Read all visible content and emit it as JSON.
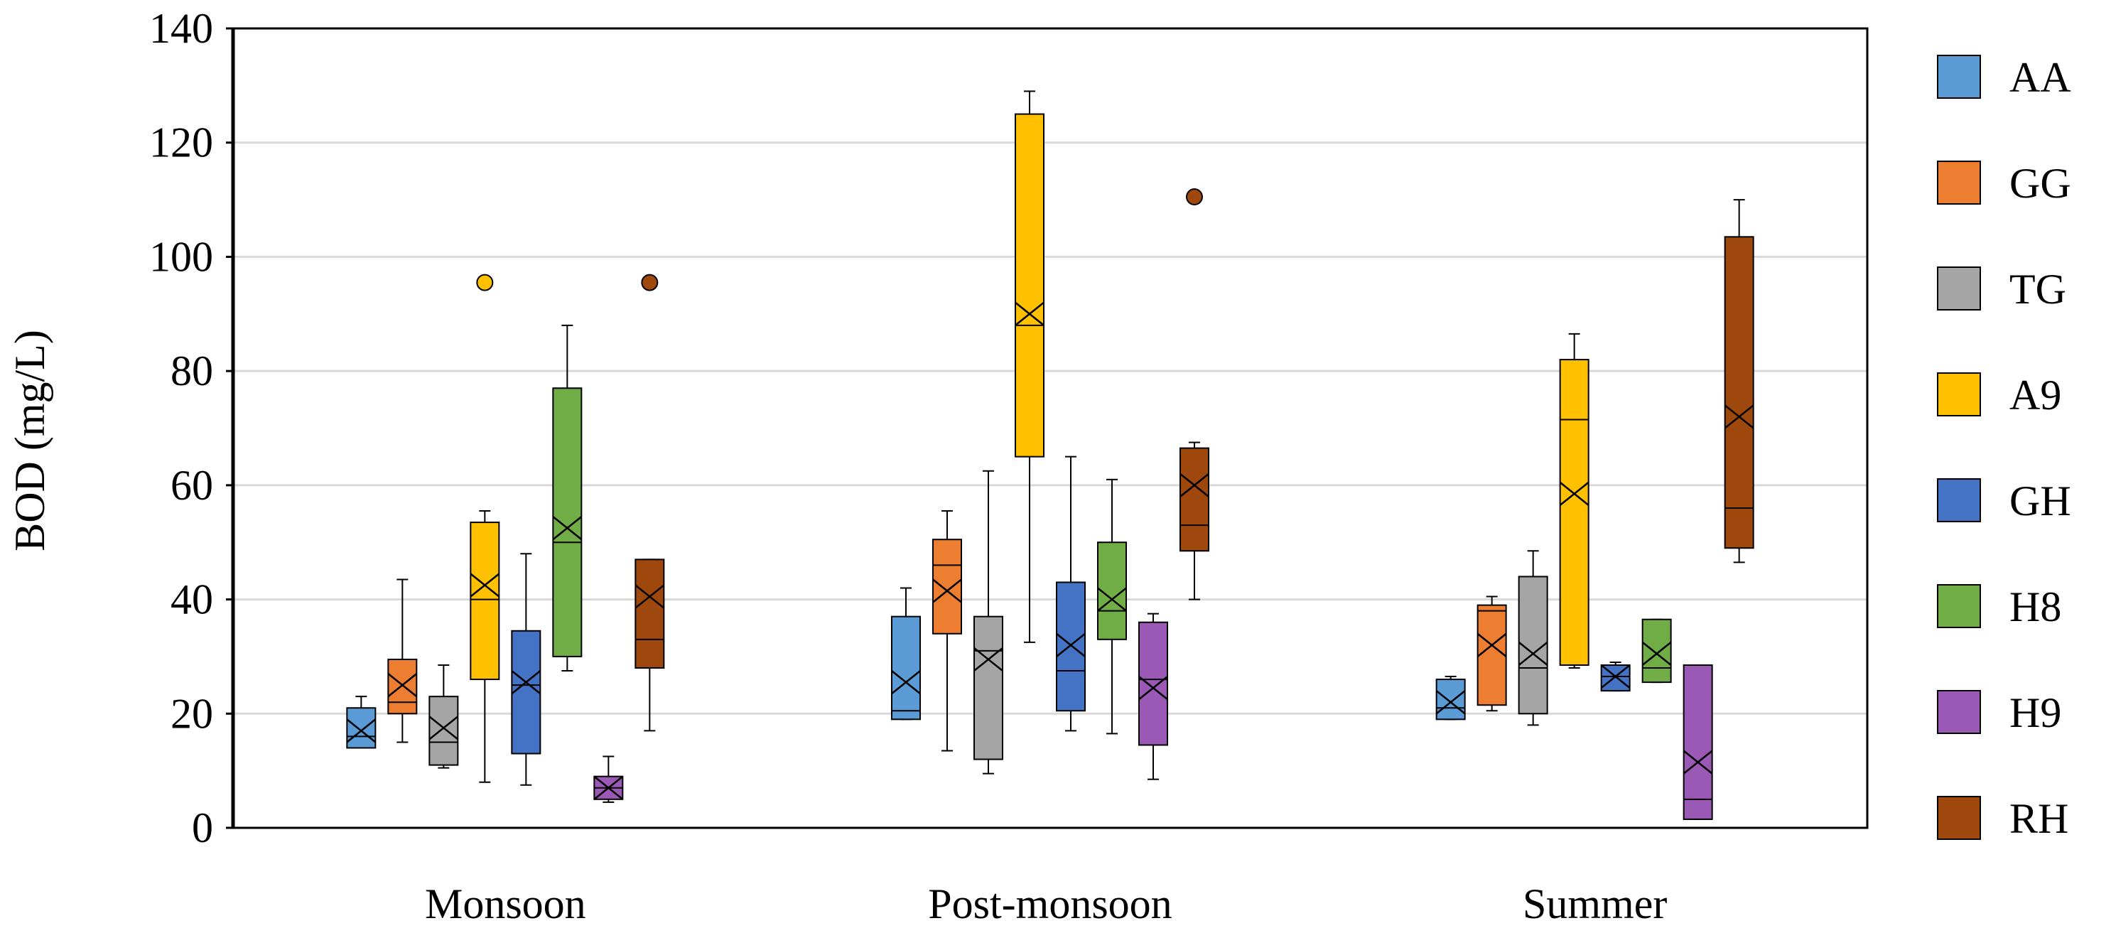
{
  "chart_data": {
    "type": "boxplot",
    "title": "",
    "xlabel": "",
    "ylabel": "BOD (mg/L)",
    "ylim": [
      0,
      140
    ],
    "yticks": [
      0,
      20,
      40,
      60,
      80,
      100,
      120,
      140
    ],
    "categories": [
      "Monsoon",
      "Post-monsoon",
      "Summer"
    ],
    "grid": true,
    "legend_position": "right",
    "series": [
      {
        "name": "AA",
        "color": "#5B9BD5",
        "boxes": [
          {
            "min": 14,
            "q1": 14,
            "median": 16,
            "q3": 21,
            "max": 23,
            "mean": 17,
            "outliers": []
          },
          {
            "min": 19,
            "q1": 19,
            "median": 20.5,
            "q3": 37,
            "max": 42,
            "mean": 25.5,
            "outliers": []
          },
          {
            "min": 19,
            "q1": 19,
            "median": 21,
            "q3": 26,
            "max": 26.5,
            "mean": 22,
            "outliers": []
          }
        ]
      },
      {
        "name": "GG",
        "color": "#ED7D31",
        "boxes": [
          {
            "min": 15,
            "q1": 20,
            "median": 22,
            "q3": 29.5,
            "max": 43.5,
            "mean": 25,
            "outliers": []
          },
          {
            "min": 13.5,
            "q1": 34,
            "median": 46,
            "q3": 50.5,
            "max": 55.5,
            "mean": 41.5,
            "outliers": []
          },
          {
            "min": 20.5,
            "q1": 21.5,
            "median": 38,
            "q3": 39,
            "max": 40.5,
            "mean": 32,
            "outliers": []
          }
        ]
      },
      {
        "name": "TG",
        "color": "#A5A5A5",
        "boxes": [
          {
            "min": 10.5,
            "q1": 11,
            "median": 15,
            "q3": 23,
            "max": 28.5,
            "mean": 17.5,
            "outliers": []
          },
          {
            "min": 9.5,
            "q1": 12,
            "median": 31,
            "q3": 37,
            "max": 62.5,
            "mean": 29.5,
            "outliers": []
          },
          {
            "min": 18,
            "q1": 20,
            "median": 28,
            "q3": 44,
            "max": 48.5,
            "mean": 30.5,
            "outliers": []
          }
        ]
      },
      {
        "name": "A9",
        "color": "#FFC000",
        "boxes": [
          {
            "min": 8,
            "q1": 26,
            "median": 40,
            "q3": 53.5,
            "max": 55.5,
            "mean": 42.5,
            "outliers": [
              95.5
            ]
          },
          {
            "min": 32.5,
            "q1": 65,
            "median": 88,
            "q3": 125,
            "max": 129,
            "mean": 90,
            "outliers": []
          },
          {
            "min": 28,
            "q1": 28.5,
            "median": 71.5,
            "q3": 82,
            "max": 86.5,
            "mean": 58.5,
            "outliers": []
          }
        ]
      },
      {
        "name": "GH",
        "color": "#4472C4",
        "boxes": [
          {
            "min": 7.5,
            "q1": 13,
            "median": 25,
            "q3": 34.5,
            "max": 48,
            "mean": 25.5,
            "outliers": []
          },
          {
            "min": 17,
            "q1": 20.5,
            "median": 27.5,
            "q3": 43,
            "max": 65,
            "mean": 32,
            "outliers": []
          },
          {
            "min": 24,
            "q1": 24,
            "median": 26.5,
            "q3": 28.5,
            "max": 29,
            "mean": 26.5,
            "outliers": []
          }
        ]
      },
      {
        "name": "H8",
        "color": "#70AD47",
        "boxes": [
          {
            "min": 27.5,
            "q1": 30,
            "median": 50,
            "q3": 77,
            "max": 88,
            "mean": 52.5,
            "outliers": []
          },
          {
            "min": 16.5,
            "q1": 33,
            "median": 38,
            "q3": 50,
            "max": 61,
            "mean": 40,
            "outliers": []
          },
          {
            "min": 25.5,
            "q1": 25.5,
            "median": 28,
            "q3": 36.5,
            "max": 36.5,
            "mean": 30.5,
            "outliers": []
          }
        ]
      },
      {
        "name": "H9",
        "color": "#9B59B6",
        "boxes": [
          {
            "min": 4.5,
            "q1": 5,
            "median": 7,
            "q3": 9,
            "max": 12.5,
            "mean": 7,
            "outliers": []
          },
          {
            "min": 8.5,
            "q1": 14.5,
            "median": 26,
            "q3": 36,
            "max": 37.5,
            "mean": 24.5,
            "outliers": []
          },
          {
            "min": 1.5,
            "q1": 1.5,
            "median": 5,
            "q3": 28.5,
            "max": 28.5,
            "mean": 11.5,
            "outliers": []
          }
        ]
      },
      {
        "name": "RH",
        "color": "#9E480E",
        "boxes": [
          {
            "min": 17,
            "q1": 28,
            "median": 33,
            "q3": 47,
            "max": 47,
            "mean": 40.5,
            "outliers": [
              95.5
            ]
          },
          {
            "min": 40,
            "q1": 48.5,
            "median": 53,
            "q3": 66.5,
            "max": 67.5,
            "mean": 60,
            "outliers": [
              110.5
            ]
          },
          {
            "min": 46.5,
            "q1": 49,
            "median": 56,
            "q3": 103.5,
            "max": 110,
            "mean": 72,
            "outliers": []
          }
        ]
      }
    ]
  }
}
